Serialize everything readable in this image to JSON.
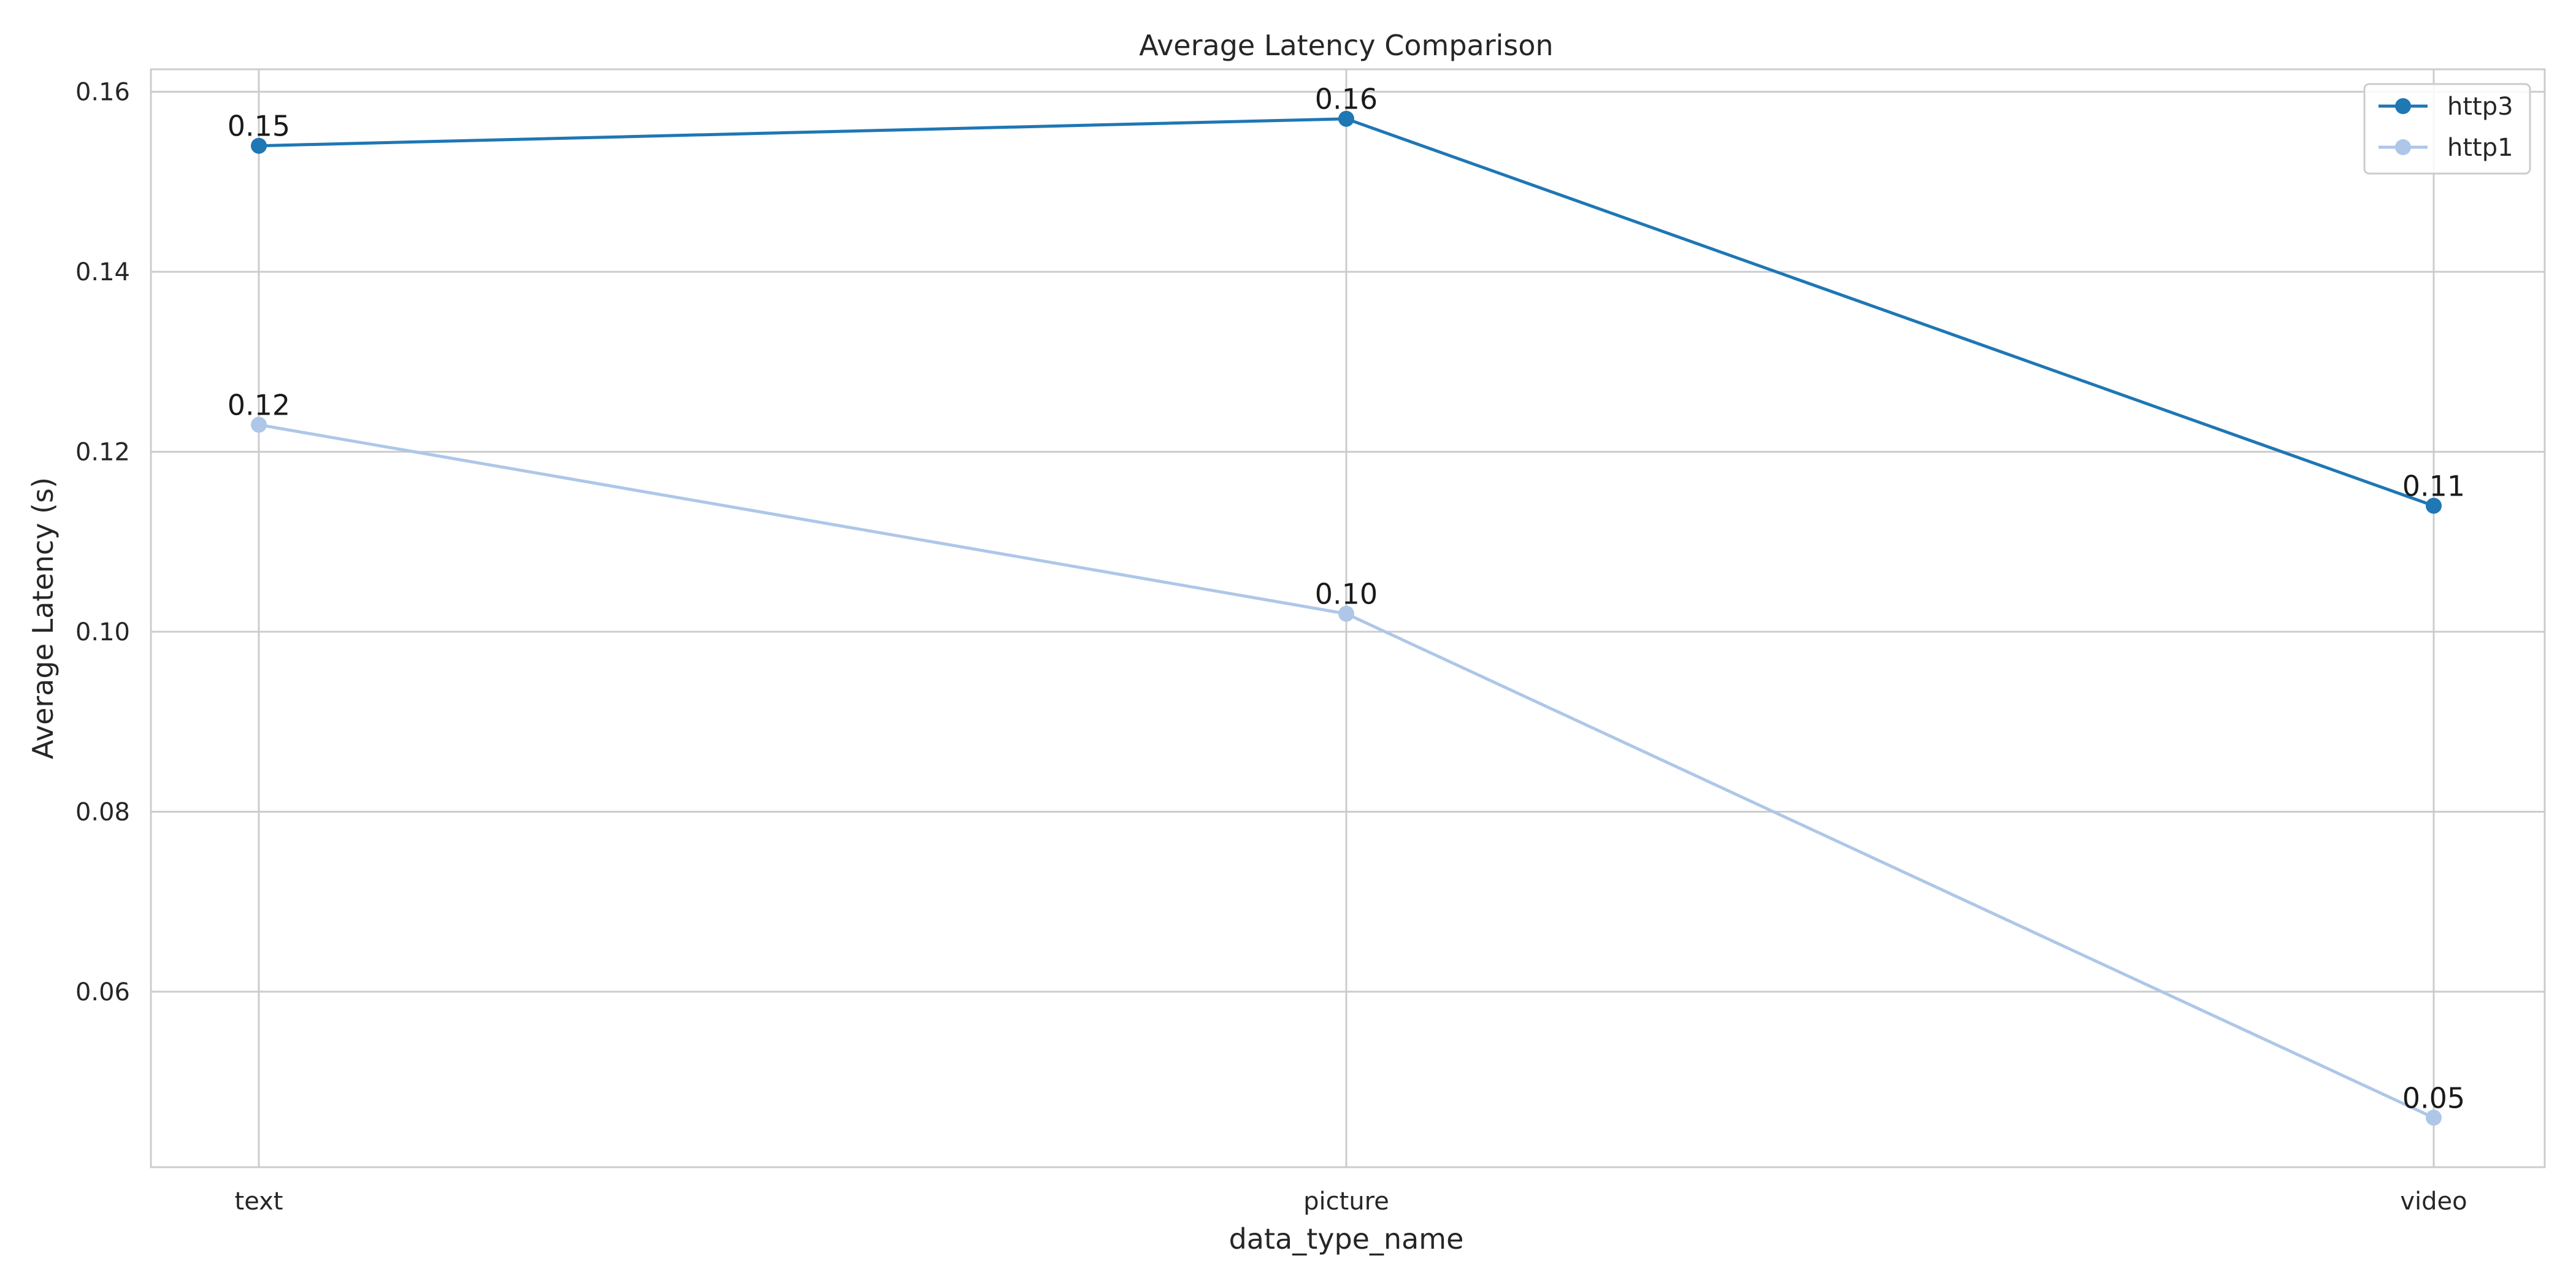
{
  "chart_data": {
    "type": "line",
    "title": "Average Latency Comparison",
    "xlabel": "data_type_name",
    "ylabel": "Average Latency (s)",
    "categories": [
      "text",
      "picture",
      "video"
    ],
    "ylim": [
      0.0405,
      0.1625
    ],
    "yticks": [
      0.06,
      0.08,
      0.1,
      0.12,
      0.14,
      0.16
    ],
    "ytick_labels": [
      "0.06",
      "0.08",
      "0.10",
      "0.12",
      "0.14",
      "0.16"
    ],
    "grid": true,
    "legend_position": "top-right",
    "series": [
      {
        "name": "http3",
        "color": "#1f77b4",
        "values": [
          0.154,
          0.157,
          0.114
        ],
        "labels": [
          "0.15",
          "0.16",
          "0.11"
        ]
      },
      {
        "name": "http1",
        "color": "#aec7e8",
        "values": [
          0.123,
          0.102,
          0.046
        ],
        "labels": [
          "0.12",
          "0.10",
          "0.05"
        ]
      }
    ]
  }
}
